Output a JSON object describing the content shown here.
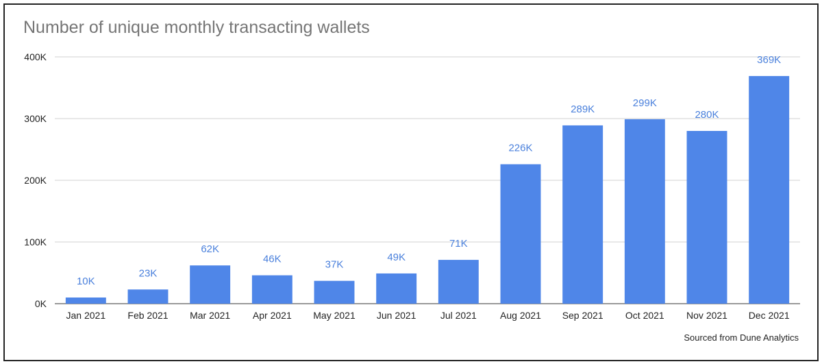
{
  "chart_data": {
    "type": "bar",
    "title": "Number of unique monthly transacting wallets",
    "categories": [
      "Jan 2021",
      "Feb 2021",
      "Mar 2021",
      "Apr 2021",
      "May 2021",
      "Jun 2021",
      "Jul 2021",
      "Aug 2021",
      "Sep 2021",
      "Oct 2021",
      "Nov 2021",
      "Dec 2021"
    ],
    "values": [
      10000,
      23000,
      62000,
      46000,
      37000,
      49000,
      71000,
      226000,
      289000,
      299000,
      280000,
      369000
    ],
    "data_labels": [
      "10K",
      "23K",
      "62K",
      "46K",
      "37K",
      "49K",
      "71K",
      "226K",
      "289K",
      "299K",
      "280K",
      "369K"
    ],
    "ylim": [
      0,
      400000
    ],
    "yticks": [
      0,
      100000,
      200000,
      300000,
      400000
    ],
    "ytick_labels": [
      "0K",
      "100K",
      "200K",
      "300K",
      "400K"
    ],
    "xlabel": "",
    "ylabel": "",
    "grid": true,
    "bar_color": "#4f86e8",
    "label_color": "#4a80dc"
  },
  "footer": {
    "source": "Sourced from Dune Analytics"
  }
}
